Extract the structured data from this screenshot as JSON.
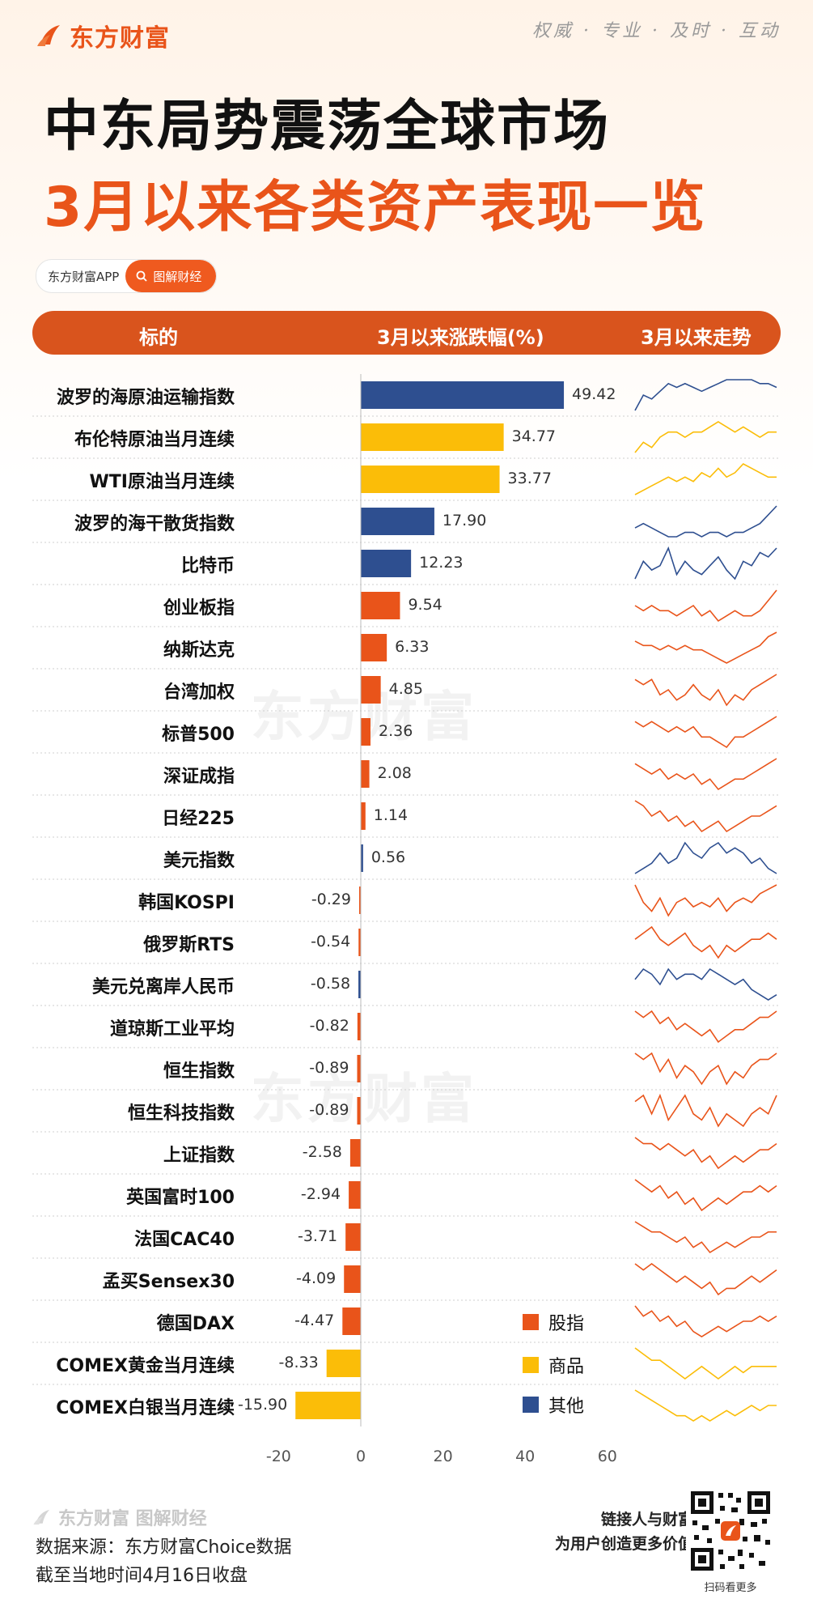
{
  "brand": {
    "name": "东方财富",
    "slogan": "权威 · 专业 · 及时 · 互动"
  },
  "title": {
    "line1": "中东局势震荡全球市场",
    "line2": "3月以来各类资产表现一览"
  },
  "app_pill": {
    "app_name": "东方财富APP",
    "tag_label": "图解财经"
  },
  "table_header": {
    "col1": "标的",
    "col2": "3月以来涨跌幅(%)",
    "col3": "3月以来走势"
  },
  "watermark": "东方财富",
  "legend": [
    {
      "label": "股指",
      "color": "#e9541a"
    },
    {
      "label": "商品",
      "color": "#fbbd08"
    },
    {
      "label": "其他",
      "color": "#2e4f90"
    }
  ],
  "colors": {
    "股指": "#e9541a",
    "商品": "#fbbd08",
    "其他": "#2e4f90",
    "accent": "#d9541d"
  },
  "chart_data": {
    "type": "bar",
    "orientation": "horizontal",
    "xlim": [
      -20,
      60
    ],
    "xticks": [
      "-20",
      "0",
      "20",
      "40",
      "60"
    ],
    "categories": [
      "波罗的海原油运输指数",
      "布伦特原油当月连续",
      "WTI原油当月连续",
      "波罗的海干散货指数",
      "比特币",
      "创业板指",
      "纳斯达克",
      "台湾加权",
      "标普500",
      "深证成指",
      "日经225",
      "美元指数",
      "韩国KOSPI",
      "俄罗斯RTS",
      "美元兑离岸人民币",
      "道琼斯工业平均",
      "恒生指数",
      "恒生科技指数",
      "上证指数",
      "英国富时100",
      "法国CAC40",
      "孟买Sensex30",
      "德国DAX",
      "COMEX黄金当月连续",
      "COMEX白银当月连续"
    ],
    "values": [
      49.42,
      34.77,
      33.77,
      17.9,
      12.23,
      9.54,
      6.33,
      4.85,
      2.36,
      2.08,
      1.14,
      0.56,
      -0.29,
      -0.54,
      -0.58,
      -0.82,
      -0.89,
      -0.89,
      -2.58,
      -2.94,
      -3.71,
      -4.09,
      -4.47,
      -8.33,
      -15.9
    ],
    "value_labels": [
      "49.42",
      "34.77",
      "33.77",
      "17.90",
      "12.23",
      "9.54",
      "6.33",
      "4.85",
      "2.36",
      "2.08",
      "1.14",
      "0.56",
      "-0.29",
      "-0.54",
      "-0.58",
      "-0.82",
      "-0.89",
      "-0.89",
      "-2.58",
      "-2.94",
      "-3.71",
      "-4.09",
      "-4.47",
      "-8.33",
      "-15.90"
    ],
    "groups": [
      "其他",
      "商品",
      "商品",
      "其他",
      "其他",
      "股指",
      "股指",
      "股指",
      "股指",
      "股指",
      "股指",
      "其他",
      "股指",
      "股指",
      "其他",
      "股指",
      "股指",
      "股指",
      "股指",
      "股指",
      "股指",
      "股指",
      "股指",
      "商品",
      "商品"
    ],
    "sparklines": [
      [
        2,
        6,
        5,
        7,
        9,
        8,
        9,
        8,
        7,
        8,
        9,
        10,
        10,
        10,
        10,
        9,
        9,
        8
      ],
      [
        2,
        4,
        3,
        5,
        6,
        6,
        5,
        6,
        6,
        7,
        8,
        7,
        6,
        7,
        6,
        5,
        6,
        6
      ],
      [
        2,
        3,
        4,
        5,
        6,
        5,
        6,
        5,
        7,
        6,
        8,
        6,
        7,
        9,
        8,
        7,
        6,
        6
      ],
      [
        4,
        5,
        4,
        3,
        2,
        2,
        3,
        3,
        2,
        3,
        3,
        2,
        3,
        3,
        4,
        5,
        7,
        9
      ],
      [
        2,
        6,
        4,
        5,
        9,
        3,
        6,
        4,
        3,
        5,
        7,
        4,
        2,
        6,
        5,
        8,
        7,
        9
      ],
      [
        6,
        5,
        6,
        5,
        5,
        4,
        5,
        6,
        4,
        5,
        3,
        4,
        5,
        4,
        4,
        5,
        7,
        9
      ],
      [
        6,
        5,
        5,
        4,
        5,
        4,
        5,
        4,
        4,
        3,
        2,
        1,
        2,
        3,
        4,
        5,
        7,
        8
      ],
      [
        7,
        6,
        7,
        4,
        5,
        3,
        4,
        6,
        4,
        3,
        5,
        2,
        4,
        3,
        5,
        6,
        7,
        8
      ],
      [
        6,
        5,
        6,
        5,
        4,
        5,
        4,
        5,
        3,
        3,
        2,
        1,
        3,
        3,
        4,
        5,
        6,
        7
      ],
      [
        7,
        6,
        5,
        6,
        4,
        5,
        4,
        5,
        3,
        4,
        2,
        3,
        4,
        4,
        5,
        6,
        7,
        8
      ],
      [
        8,
        7,
        5,
        6,
        4,
        5,
        3,
        4,
        2,
        3,
        4,
        2,
        3,
        4,
        5,
        5,
        6,
        7
      ],
      [
        2,
        3,
        4,
        6,
        4,
        5,
        8,
        6,
        5,
        7,
        8,
        6,
        7,
        6,
        4,
        5,
        3,
        2
      ],
      [
        9,
        5,
        3,
        6,
        2,
        5,
        6,
        4,
        5,
        4,
        6,
        3,
        5,
        6,
        5,
        7,
        8,
        9
      ],
      [
        6,
        7,
        8,
        6,
        5,
        6,
        7,
        5,
        4,
        5,
        3,
        5,
        4,
        5,
        6,
        6,
        7,
        6
      ],
      [
        6,
        8,
        7,
        5,
        8,
        6,
        7,
        7,
        6,
        8,
        7,
        6,
        5,
        6,
        4,
        3,
        2,
        3
      ],
      [
        7,
        6,
        7,
        5,
        6,
        4,
        5,
        4,
        3,
        4,
        2,
        3,
        4,
        4,
        5,
        6,
        6,
        7
      ],
      [
        7,
        6,
        7,
        4,
        6,
        3,
        5,
        4,
        2,
        4,
        5,
        2,
        4,
        3,
        5,
        6,
        6,
        7
      ],
      [
        6,
        7,
        4,
        7,
        3,
        5,
        7,
        4,
        3,
        5,
        2,
        4,
        3,
        2,
        4,
        5,
        4,
        7
      ],
      [
        7,
        6,
        6,
        5,
        6,
        5,
        4,
        5,
        3,
        4,
        2,
        3,
        4,
        3,
        4,
        5,
        5,
        6
      ],
      [
        7,
        6,
        5,
        6,
        4,
        5,
        3,
        4,
        2,
        3,
        4,
        3,
        4,
        5,
        5,
        6,
        5,
        6
      ],
      [
        8,
        7,
        6,
        6,
        5,
        4,
        5,
        3,
        4,
        2,
        3,
        4,
        3,
        4,
        5,
        5,
        6,
        6
      ],
      [
        7,
        6,
        7,
        6,
        5,
        4,
        5,
        4,
        3,
        4,
        2,
        3,
        3,
        4,
        5,
        4,
        5,
        6
      ],
      [
        8,
        6,
        7,
        5,
        6,
        4,
        5,
        3,
        2,
        3,
        4,
        3,
        4,
        5,
        5,
        6,
        5,
        6
      ],
      [
        8,
        7,
        6,
        6,
        5,
        4,
        3,
        4,
        5,
        4,
        3,
        4,
        5,
        4,
        5,
        5,
        5,
        5
      ],
      [
        8,
        7,
        6,
        5,
        4,
        3,
        3,
        2,
        3,
        2,
        3,
        4,
        3,
        4,
        5,
        4,
        5,
        5
      ]
    ]
  },
  "footer": {
    "brand": "东方财富 图解财经",
    "source": "数据来源：东方财富Choice数据",
    "cutoff": "截至当地时间4月16日收盘",
    "tagline1": "链接人与财富",
    "tagline2": "为用户创造更多价值",
    "qr_caption": "扫码看更多"
  }
}
